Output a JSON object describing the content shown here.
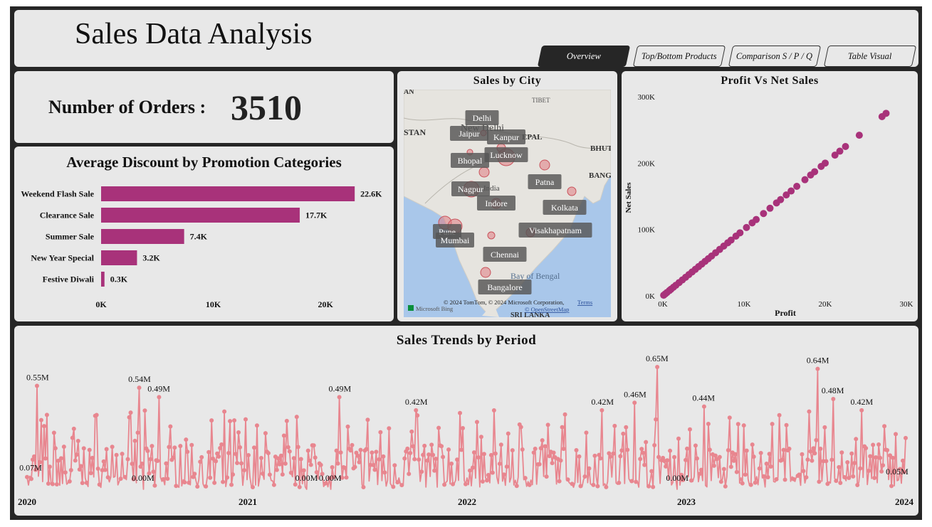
{
  "header": {
    "title": "Sales Data Analysis"
  },
  "tabs": [
    {
      "label": "Overview",
      "active": true
    },
    {
      "label": "Top/Bottom Products",
      "active": false
    },
    {
      "label": "Comparison S / P / Q",
      "active": false
    },
    {
      "label": "Table Visual",
      "active": false
    }
  ],
  "kpi": {
    "label": "Number of Orders :",
    "value": "3510"
  },
  "colors": {
    "bar": "#a8327a",
    "scatter": "#a8327a",
    "trend": "#e8868f",
    "bubble": "#e07b82",
    "map_water": "#a9c7ea",
    "map_land": "#e6e4df"
  },
  "map": {
    "title": "Sales by City",
    "region_labels": [
      "TIBET",
      "BHUTAN",
      "BANGLADESH",
      "SRI LANKA",
      "STAN",
      "AN",
      "EPAL",
      "New Delhi",
      "India",
      "Bay of Bengal"
    ],
    "attribution": "© 2024 TomTom, © 2024 Microsoft Corporation,",
    "terms": "Terms",
    "osm": "© OpenStreetMap",
    "provider": "Microsoft Bing",
    "cities": [
      {
        "name": "Delhi",
        "size": 4
      },
      {
        "name": "Jaipur",
        "size": 4
      },
      {
        "name": "Kanpur",
        "size": 6
      },
      {
        "name": "Lucknow",
        "size": 12
      },
      {
        "name": "Bhopal",
        "size": 7
      },
      {
        "name": "Nagpur",
        "size": 11
      },
      {
        "name": "Patna",
        "size": 7
      },
      {
        "name": "Indore",
        "size": 7
      },
      {
        "name": "Kolkata",
        "size": 6
      },
      {
        "name": "Pune",
        "size": 9
      },
      {
        "name": "Mumbai",
        "size": 10
      },
      {
        "name": "Visakhapatnam",
        "size": 6
      },
      {
        "name": "Chennai",
        "size": 5
      },
      {
        "name": "Bangalore",
        "size": 7
      }
    ]
  },
  "chart_data": [
    {
      "type": "bar",
      "orientation": "horizontal",
      "title": "Average Discount by Promotion Categories",
      "categories": [
        "Weekend Flash Sale",
        "Clearance Sale",
        "Summer Sale",
        "New Year Special",
        "Festive Diwali"
      ],
      "values": [
        22600,
        17700,
        7400,
        3200,
        300
      ],
      "data_labels": [
        "22.6K",
        "17.7K",
        "7.4K",
        "3.2K",
        "0.3K"
      ],
      "xlim": [
        0,
        25000
      ],
      "x_ticks": [
        0,
        10000,
        20000
      ],
      "x_tick_labels": [
        "0K",
        "10K",
        "20K"
      ],
      "xlabel": "",
      "ylabel": ""
    },
    {
      "type": "scatter",
      "title": "Profit Vs Net Sales",
      "xlabel": "Profit",
      "ylabel": "Net Sales",
      "xlim": [
        0,
        30000
      ],
      "ylim": [
        0,
        300000
      ],
      "x_ticks": [
        0,
        10000,
        20000,
        30000
      ],
      "x_tick_labels": [
        "0K",
        "10K",
        "20K",
        "30K"
      ],
      "y_ticks": [
        0,
        100000,
        200000,
        300000
      ],
      "y_tick_labels": [
        "0K",
        "100K",
        "200K",
        "300K"
      ],
      "points": [
        [
          100,
          1000
        ],
        [
          300,
          3000
        ],
        [
          500,
          5000
        ],
        [
          800,
          8000
        ],
        [
          1000,
          10000
        ],
        [
          1300,
          13000
        ],
        [
          1600,
          16000
        ],
        [
          2000,
          20000
        ],
        [
          2400,
          24000
        ],
        [
          2800,
          28000
        ],
        [
          3200,
          32000
        ],
        [
          3600,
          36000
        ],
        [
          4000,
          40000
        ],
        [
          4400,
          44000
        ],
        [
          4800,
          48000
        ],
        [
          5200,
          52000
        ],
        [
          5600,
          56000
        ],
        [
          6000,
          60000
        ],
        [
          6500,
          65000
        ],
        [
          7000,
          70000
        ],
        [
          7500,
          75000
        ],
        [
          8000,
          80000
        ],
        [
          8400,
          84000
        ],
        [
          9000,
          90000
        ],
        [
          9500,
          95000
        ],
        [
          10300,
          103000
        ],
        [
          11000,
          110000
        ],
        [
          11500,
          115000
        ],
        [
          12400,
          124000
        ],
        [
          13200,
          132000
        ],
        [
          14000,
          140000
        ],
        [
          14500,
          145000
        ],
        [
          15200,
          152000
        ],
        [
          15800,
          158000
        ],
        [
          16500,
          165000
        ],
        [
          17500,
          175000
        ],
        [
          18200,
          182000
        ],
        [
          18700,
          187000
        ],
        [
          19500,
          195000
        ],
        [
          20000,
          200000
        ],
        [
          21200,
          212000
        ],
        [
          21800,
          218000
        ],
        [
          22500,
          225000
        ],
        [
          24200,
          242000
        ],
        [
          27000,
          270000
        ],
        [
          27500,
          275000
        ]
      ]
    },
    {
      "type": "line",
      "title": "Sales Trends by Period",
      "x_tick_labels": [
        "2020",
        "2021",
        "2022",
        "2023",
        "2024"
      ],
      "ylim": [
        0,
        0.65
      ],
      "unit": "M",
      "annotations": [
        {
          "label": "0.55M",
          "x": 0.012,
          "y": 0.55
        },
        {
          "label": "0.07M",
          "x": 0.004,
          "y": 0.07
        },
        {
          "label": "0.54M",
          "x": 0.128,
          "y": 0.54
        },
        {
          "label": "0.49M",
          "x": 0.15,
          "y": 0.49
        },
        {
          "label": "0.00M",
          "x": 0.132,
          "y": 0.0
        },
        {
          "label": "0.00M",
          "x": 0.318,
          "y": 0.0
        },
        {
          "label": "0.49M",
          "x": 0.356,
          "y": 0.49
        },
        {
          "label": "0.00M",
          "x": 0.345,
          "y": 0.0
        },
        {
          "label": "0.42M",
          "x": 0.443,
          "y": 0.42
        },
        {
          "label": "0.42M",
          "x": 0.655,
          "y": 0.42
        },
        {
          "label": "0.46M",
          "x": 0.692,
          "y": 0.46
        },
        {
          "label": "0.65M",
          "x": 0.717,
          "y": 0.65
        },
        {
          "label": "0.00M",
          "x": 0.74,
          "y": 0.0
        },
        {
          "label": "0.44M",
          "x": 0.77,
          "y": 0.44
        },
        {
          "label": "0.64M",
          "x": 0.9,
          "y": 0.64
        },
        {
          "label": "0.48M",
          "x": 0.917,
          "y": 0.48
        },
        {
          "label": "0.42M",
          "x": 0.95,
          "y": 0.42
        },
        {
          "label": "0.05M",
          "x": 0.992,
          "y": 0.05
        }
      ]
    }
  ]
}
